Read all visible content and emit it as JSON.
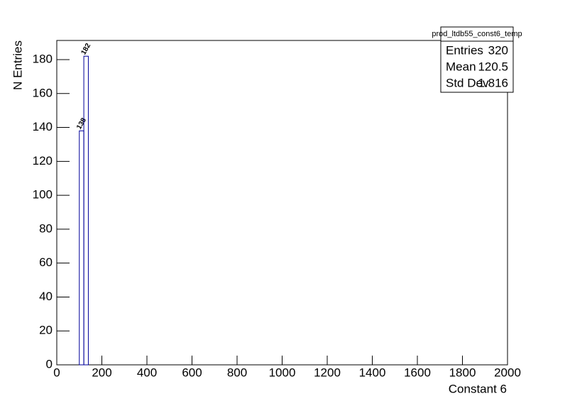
{
  "chart_data": {
    "type": "histogram",
    "x_label": "Constant 6",
    "y_label": "N Entries",
    "bins": [
      100,
      120,
      140
    ],
    "values": [
      138,
      182
    ],
    "color": "#000099",
    "xlim": [
      0,
      2000
    ],
    "xticks": [
      0,
      200,
      400,
      600,
      800,
      1000,
      1200,
      1400,
      1600,
      1800,
      2000
    ],
    "ylim": [
      0,
      191.3
    ],
    "yticks": [
      0,
      20,
      40,
      60,
      80,
      100,
      120,
      140,
      160,
      180
    ],
    "stats": {
      "name": "prod_ltdb55_const6_temp",
      "rows": [
        {
          "label": "Entries",
          "value": 320
        },
        {
          "label": "Mean",
          "value": 120.5
        },
        {
          "label": "Std Dev",
          "value": 1.816
        }
      ]
    }
  }
}
